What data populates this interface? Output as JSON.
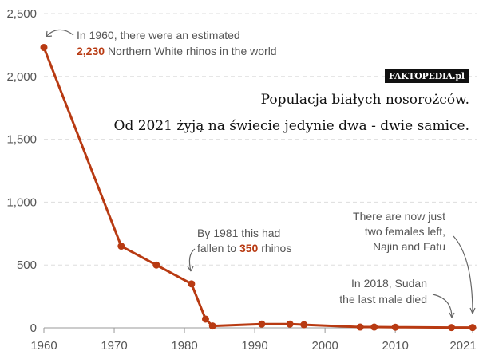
{
  "chart_data": {
    "type": "line",
    "title": "",
    "xlabel": "",
    "ylabel": "",
    "xlim": [
      1960,
      2021
    ],
    "ylim": [
      0,
      2500
    ],
    "grid": "horizontal-dashed",
    "color": "#b83a12",
    "x_ticks": [
      "1960",
      "1970",
      "1980",
      "1990",
      "2000",
      "2010",
      "2021"
    ],
    "x_tick_values": [
      1960,
      1970,
      1980,
      1990,
      2000,
      2010,
      2021
    ],
    "y_ticks": [
      "0",
      "500",
      "1,000",
      "1,500",
      "2,000",
      "2,500"
    ],
    "y_tick_values": [
      0,
      500,
      1000,
      1500,
      2000,
      2500
    ],
    "x": [
      1960,
      1971,
      1976,
      1981,
      1983,
      1984,
      1991,
      1995,
      1997,
      2005,
      2007,
      2010,
      2018,
      2021
    ],
    "values": [
      2230,
      650,
      500,
      350,
      70,
      15,
      30,
      30,
      25,
      6,
      6,
      5,
      2,
      2
    ],
    "annotations": [
      {
        "lines": [
          "In 1960, there were an estimated",
          "Northern White rhinos in the world"
        ],
        "highlight": "2,230"
      },
      {
        "lines": [
          "By 1981 this had",
          "fallen to",
          "rhinos"
        ],
        "highlight": "350"
      },
      {
        "lines": [
          "There are now just",
          "two females left,",
          "Najin and Fatu"
        ]
      },
      {
        "lines": [
          "In 2018, Sudan",
          "the last male died"
        ]
      }
    ]
  },
  "watermark": "FAKTOPEDIA.pl",
  "caption": {
    "line1": "Populacja białych nosorożców.",
    "line2": "Od 2021 żyją na świecie jedynie dwa - dwie samice."
  }
}
